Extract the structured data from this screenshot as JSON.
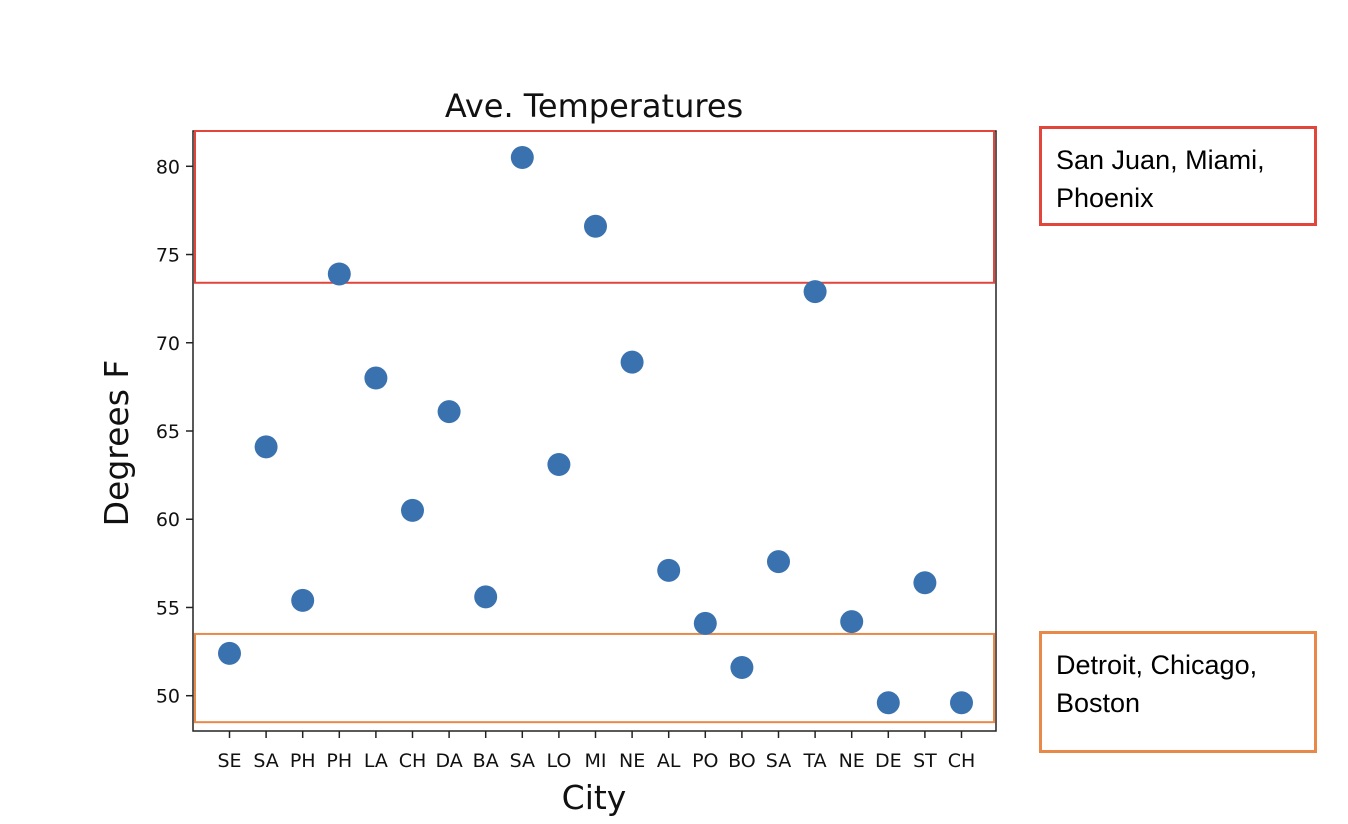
{
  "chart_data": {
    "type": "scatter",
    "title": "Ave. Temperatures",
    "xlabel": "City",
    "ylabel": "Degrees F",
    "categories": [
      "SE",
      "SA",
      "PH",
      "PH",
      "LA",
      "CH",
      "DA",
      "BA",
      "SA",
      "LO",
      "MI",
      "NE",
      "AL",
      "PO",
      "BO",
      "SA",
      "TA",
      "NE",
      "DE",
      "ST",
      "CH"
    ],
    "values": [
      52.4,
      64.1,
      55.4,
      73.9,
      68.0,
      60.5,
      66.1,
      55.6,
      80.5,
      63.1,
      76.6,
      68.9,
      57.1,
      54.1,
      51.6,
      57.6,
      72.9,
      54.2,
      49.6,
      56.4,
      49.6
    ],
    "ylim": [
      48.0,
      82.0
    ],
    "yticks": [
      50,
      55,
      60,
      65,
      70,
      75,
      80
    ],
    "grid": false,
    "point_color": "#3a72b0",
    "highlight_regions": [
      {
        "name": "hot",
        "y_range": [
          73.4,
          82.0
        ],
        "color": "#e2453c"
      },
      {
        "name": "cold",
        "y_range": [
          48.5,
          53.5
        ],
        "color": "#e8894a"
      }
    ]
  },
  "annotations": {
    "hot_cities_line1": "San Juan, Miami,",
    "hot_cities_line2": "Phoenix",
    "cold_cities_line1": "Detroit, Chicago,",
    "cold_cities_line2": "Boston"
  }
}
